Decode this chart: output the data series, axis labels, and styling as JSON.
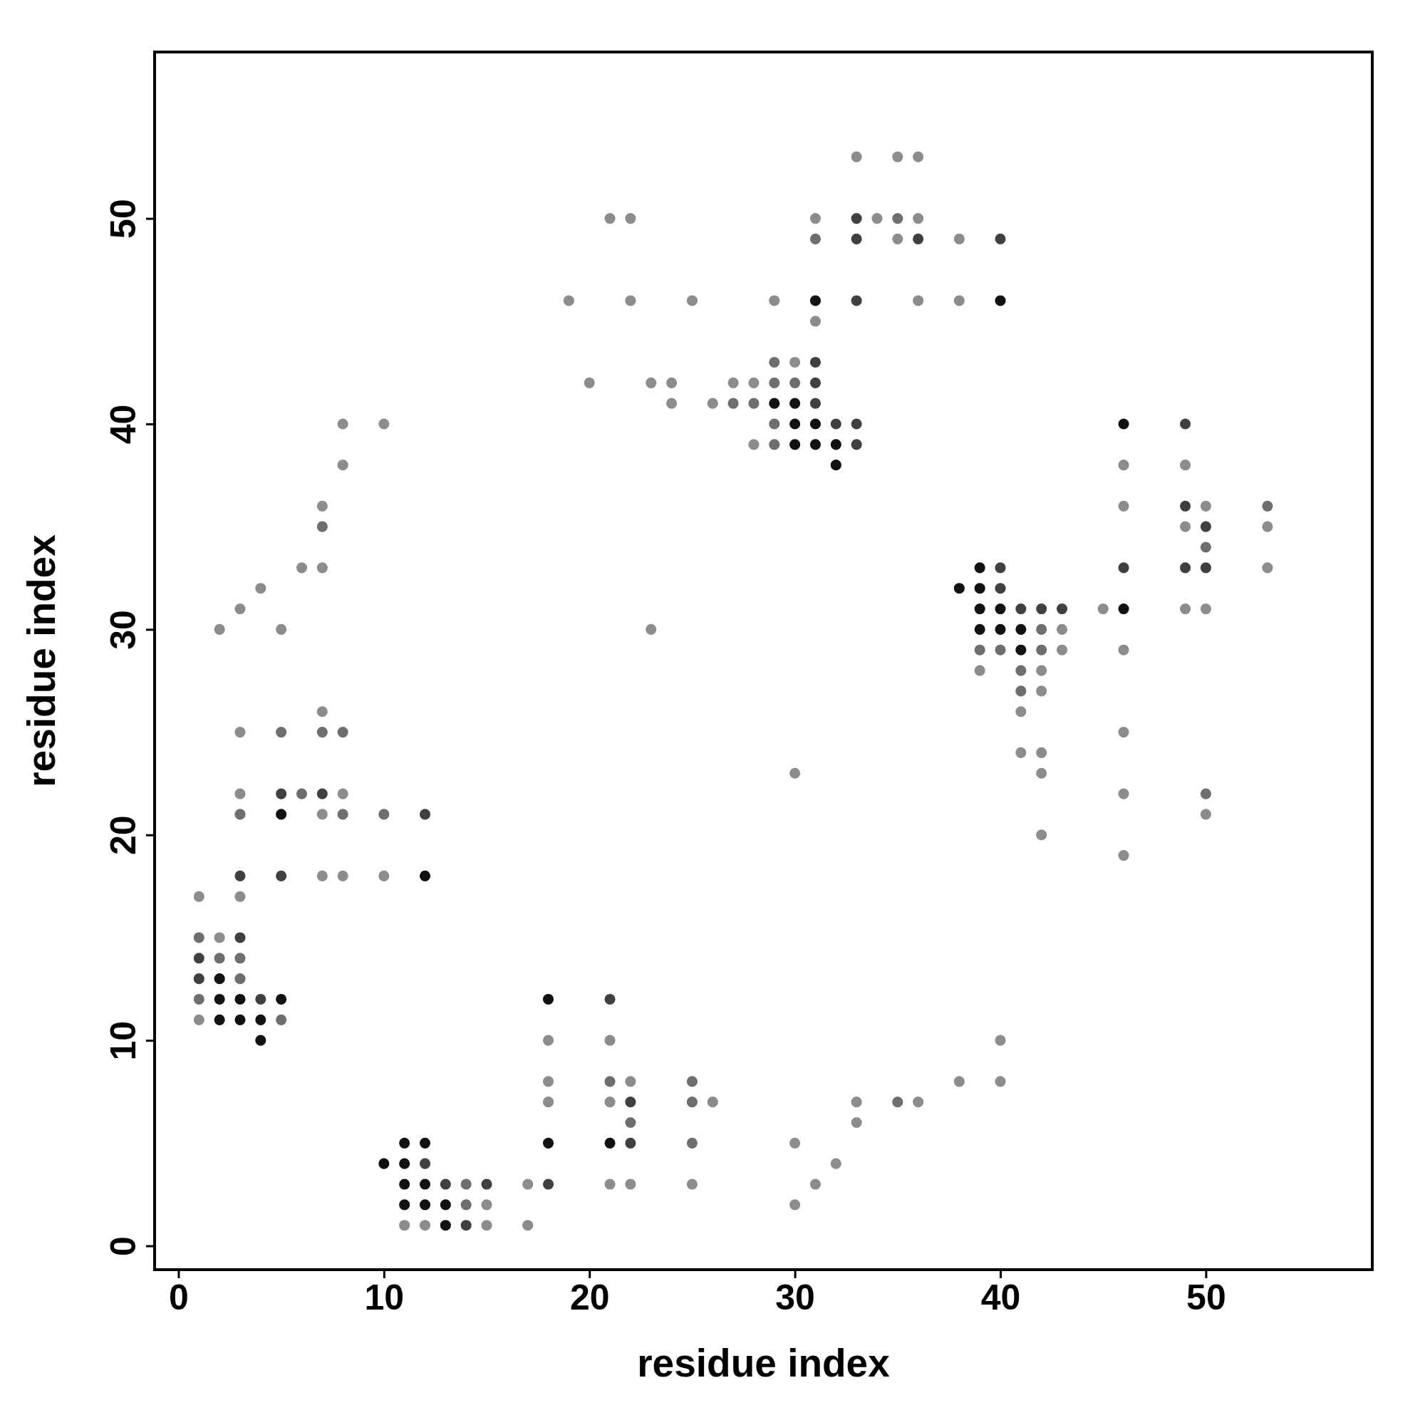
{
  "chart_data": {
    "type": "scatter",
    "xlabel": "residue index",
    "ylabel": "residue index",
    "xlim": [
      -1.16,
      58.1
    ],
    "ylim": [
      -1.16,
      58.1
    ],
    "xticks": [
      0,
      10,
      20,
      30,
      40,
      50
    ],
    "yticks": [
      0,
      10,
      20,
      30,
      40,
      50
    ],
    "marker": "circle",
    "series": [
      {
        "x": [
          33,
          35,
          36,
          21,
          22,
          31,
          33,
          34,
          35,
          36,
          31,
          33,
          35,
          36,
          38,
          40,
          19,
          22,
          25,
          29,
          31,
          33,
          36,
          38,
          40,
          31,
          29,
          30,
          31,
          20,
          23,
          24,
          27,
          28,
          29,
          30,
          31,
          24,
          26,
          27,
          28,
          29,
          30,
          31,
          8,
          10,
          29,
          30,
          31,
          32,
          33,
          46,
          49,
          28,
          29,
          30,
          31,
          32,
          33,
          8,
          32,
          46,
          49,
          7,
          46,
          49,
          50,
          53,
          7,
          49,
          50,
          53,
          50,
          6,
          7,
          39,
          40,
          46,
          49,
          50,
          53,
          4,
          38,
          39,
          40,
          3,
          39,
          40,
          41,
          42,
          43,
          45,
          46,
          49,
          50,
          2,
          5,
          23,
          39,
          40,
          41,
          42,
          43,
          39,
          40,
          41,
          42,
          43,
          46,
          39,
          41,
          42,
          41,
          42,
          7,
          41,
          3,
          5,
          7,
          8,
          46,
          41,
          42,
          30,
          42,
          3,
          5,
          6,
          7,
          8,
          46,
          50,
          3,
          5,
          7,
          8,
          10,
          12,
          50,
          42,
          46,
          3,
          5,
          7,
          8,
          10,
          12,
          1,
          3,
          1,
          2,
          3,
          1,
          2,
          3,
          1,
          2,
          3,
          1,
          2,
          3,
          4,
          5,
          18,
          21,
          1,
          2,
          3,
          4,
          5,
          4,
          18,
          21,
          40,
          18,
          21,
          22,
          25,
          38,
          40,
          18,
          21,
          22,
          25,
          26,
          33,
          35,
          36,
          22,
          33,
          11,
          12,
          18,
          21,
          22,
          25,
          30,
          10,
          11,
          12,
          32,
          11,
          12,
          13,
          14,
          15,
          17,
          18,
          21,
          22,
          25,
          31,
          11,
          12,
          13,
          14,
          15,
          30,
          11,
          12,
          13,
          14,
          15,
          17
        ],
        "values": [
          53,
          53,
          53,
          50,
          50,
          50,
          50,
          50,
          50,
          50,
          49,
          49,
          49,
          49,
          49,
          49,
          46,
          46,
          46,
          46,
          46,
          46,
          46,
          46,
          46,
          45,
          43,
          43,
          43,
          42,
          42,
          42,
          42,
          42,
          42,
          42,
          42,
          41,
          41,
          41,
          41,
          41,
          41,
          41,
          40,
          40,
          40,
          40,
          40,
          40,
          40,
          40,
          40,
          39,
          39,
          39,
          39,
          39,
          39,
          38,
          38,
          38,
          38,
          36,
          36,
          36,
          36,
          36,
          35,
          35,
          35,
          35,
          34,
          33,
          33,
          33,
          33,
          33,
          33,
          33,
          33,
          32,
          32,
          32,
          32,
          31,
          31,
          31,
          31,
          31,
          31,
          31,
          31,
          31,
          31,
          30,
          30,
          30,
          30,
          30,
          30,
          30,
          30,
          29,
          29,
          29,
          29,
          29,
          29,
          28,
          28,
          28,
          27,
          27,
          26,
          26,
          25,
          25,
          25,
          25,
          25,
          24,
          24,
          23,
          23,
          22,
          22,
          22,
          22,
          22,
          22,
          22,
          21,
          21,
          21,
          21,
          21,
          21,
          21,
          20,
          19,
          18,
          18,
          18,
          18,
          18,
          18,
          17,
          17,
          15,
          15,
          15,
          14,
          14,
          14,
          13,
          13,
          13,
          12,
          12,
          12,
          12,
          12,
          12,
          12,
          11,
          11,
          11,
          11,
          11,
          10,
          10,
          10,
          10,
          8,
          8,
          8,
          8,
          8,
          8,
          7,
          7,
          7,
          7,
          7,
          7,
          7,
          7,
          6,
          6,
          5,
          5,
          5,
          5,
          5,
          5,
          5,
          4,
          4,
          4,
          4,
          3,
          3,
          3,
          3,
          3,
          3,
          3,
          3,
          3,
          3,
          3,
          2,
          2,
          2,
          2,
          2,
          2,
          1,
          1,
          1,
          1,
          1,
          1
        ],
        "colors": [
          "#8c8c8c",
          "#8c8c8c",
          "#8c8c8c",
          "#8c8c8c",
          "#8c8c8c",
          "#8c8c8c",
          "#404040",
          "#8c8c8c",
          "#6e6e6e",
          "#8c8c8c",
          "#6e6e6e",
          "#404040",
          "#8c8c8c",
          "#404040",
          "#8c8c8c",
          "#404040",
          "#8c8c8c",
          "#8c8c8c",
          "#8c8c8c",
          "#8c8c8c",
          "#111111",
          "#404040",
          "#8c8c8c",
          "#8c8c8c",
          "#111111",
          "#8c8c8c",
          "#6e6e6e",
          "#8c8c8c",
          "#404040",
          "#8c8c8c",
          "#8c8c8c",
          "#8c8c8c",
          "#8c8c8c",
          "#8c8c8c",
          "#6e6e6e",
          "#6e6e6e",
          "#404040",
          "#8c8c8c",
          "#8c8c8c",
          "#6e6e6e",
          "#6e6e6e",
          "#111111",
          "#111111",
          "#404040",
          "#8c8c8c",
          "#8c8c8c",
          "#6e6e6e",
          "#111111",
          "#111111",
          "#404040",
          "#404040",
          "#111111",
          "#404040",
          "#8c8c8c",
          "#6e6e6e",
          "#111111",
          "#111111",
          "#111111",
          "#404040",
          "#8c8c8c",
          "#111111",
          "#8c8c8c",
          "#8c8c8c",
          "#8c8c8c",
          "#8c8c8c",
          "#404040",
          "#8c8c8c",
          "#6e6e6e",
          "#6e6e6e",
          "#8c8c8c",
          "#404040",
          "#8c8c8c",
          "#6e6e6e",
          "#8c8c8c",
          "#8c8c8c",
          "#111111",
          "#404040",
          "#404040",
          "#404040",
          "#404040",
          "#8c8c8c",
          "#8c8c8c",
          "#111111",
          "#111111",
          "#404040",
          "#8c8c8c",
          "#111111",
          "#111111",
          "#404040",
          "#404040",
          "#404040",
          "#8c8c8c",
          "#111111",
          "#8c8c8c",
          "#8c8c8c",
          "#8c8c8c",
          "#8c8c8c",
          "#8c8c8c",
          "#111111",
          "#111111",
          "#111111",
          "#6e6e6e",
          "#8c8c8c",
          "#6e6e6e",
          "#6e6e6e",
          "#111111",
          "#6e6e6e",
          "#8c8c8c",
          "#8c8c8c",
          "#8c8c8c",
          "#6e6e6e",
          "#8c8c8c",
          "#6e6e6e",
          "#8c8c8c",
          "#8c8c8c",
          "#8c8c8c",
          "#8c8c8c",
          "#6e6e6e",
          "#6e6e6e",
          "#6e6e6e",
          "#8c8c8c",
          "#8c8c8c",
          "#8c8c8c",
          "#8c8c8c",
          "#8c8c8c",
          "#8c8c8c",
          "#404040",
          "#6e6e6e",
          "#404040",
          "#8c8c8c",
          "#8c8c8c",
          "#6e6e6e",
          "#6e6e6e",
          "#111111",
          "#8c8c8c",
          "#6e6e6e",
          "#6e6e6e",
          "#404040",
          "#8c8c8c",
          "#8c8c8c",
          "#8c8c8c",
          "#404040",
          "#404040",
          "#8c8c8c",
          "#8c8c8c",
          "#8c8c8c",
          "#111111",
          "#8c8c8c",
          "#8c8c8c",
          "#6e6e6e",
          "#8c8c8c",
          "#404040",
          "#404040",
          "#6e6e6e",
          "#6e6e6e",
          "#404040",
          "#111111",
          "#6e6e6e",
          "#6e6e6e",
          "#111111",
          "#111111",
          "#404040",
          "#111111",
          "#111111",
          "#404040",
          "#8c8c8c",
          "#111111",
          "#111111",
          "#111111",
          "#6e6e6e",
          "#111111",
          "#8c8c8c",
          "#8c8c8c",
          "#8c8c8c",
          "#8c8c8c",
          "#6e6e6e",
          "#8c8c8c",
          "#6e6e6e",
          "#8c8c8c",
          "#8c8c8c",
          "#8c8c8c",
          "#8c8c8c",
          "#404040",
          "#6e6e6e",
          "#8c8c8c",
          "#8c8c8c",
          "#6e6e6e",
          "#8c8c8c",
          "#6e6e6e",
          "#8c8c8c",
          "#111111",
          "#111111",
          "#111111",
          "#111111",
          "#404040",
          "#6e6e6e",
          "#8c8c8c",
          "#111111",
          "#111111",
          "#404040",
          "#8c8c8c",
          "#111111",
          "#111111",
          "#404040",
          "#6e6e6e",
          "#404040",
          "#8c8c8c",
          "#404040",
          "#8c8c8c",
          "#8c8c8c",
          "#8c8c8c",
          "#8c8c8c",
          "#111111",
          "#111111",
          "#111111",
          "#6e6e6e",
          "#8c8c8c",
          "#8c8c8c",
          "#8c8c8c",
          "#8c8c8c",
          "#111111",
          "#404040",
          "#8c8c8c",
          "#8c8c8c"
        ]
      }
    ]
  }
}
